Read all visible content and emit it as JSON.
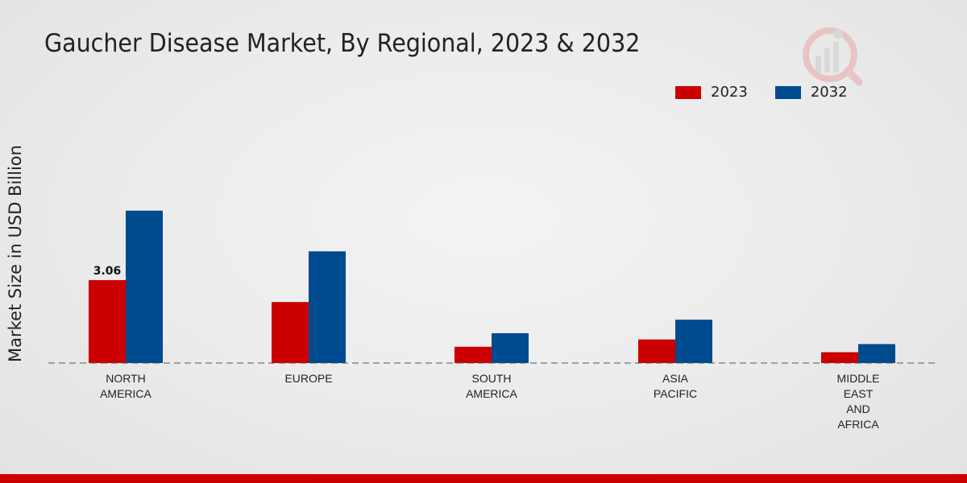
{
  "title": "Gaucher Disease Market, By Regional, 2023 & 2032",
  "colors": {
    "s2023": "#cc0000",
    "s2032": "#004a8f",
    "bottom_bar": "#cc0000"
  },
  "chart_data": {
    "type": "bar",
    "title": "Gaucher Disease Market, By Regional, 2023 & 2032",
    "xlabel": "",
    "ylabel": "Market Size in USD Billion",
    "ylim": [
      0,
      12.5
    ],
    "grid": false,
    "legend": "top-right",
    "categories": [
      [
        "NORTH",
        "AMERICA"
      ],
      [
        "EUROPE"
      ],
      [
        "SOUTH",
        "AMERICA"
      ],
      [
        "ASIA",
        "PACIFIC"
      ],
      [
        "MIDDLE",
        "EAST",
        "AND",
        "AFRICA"
      ]
    ],
    "series": [
      {
        "name": "2023",
        "values": [
          3.06,
          2.25,
          0.6,
          0.87,
          0.4
        ]
      },
      {
        "name": "2032",
        "values": [
          5.62,
          4.12,
          1.1,
          1.6,
          0.7
        ]
      }
    ],
    "data_labels": [
      {
        "series": 0,
        "index": 0,
        "text": "3.06"
      }
    ]
  }
}
